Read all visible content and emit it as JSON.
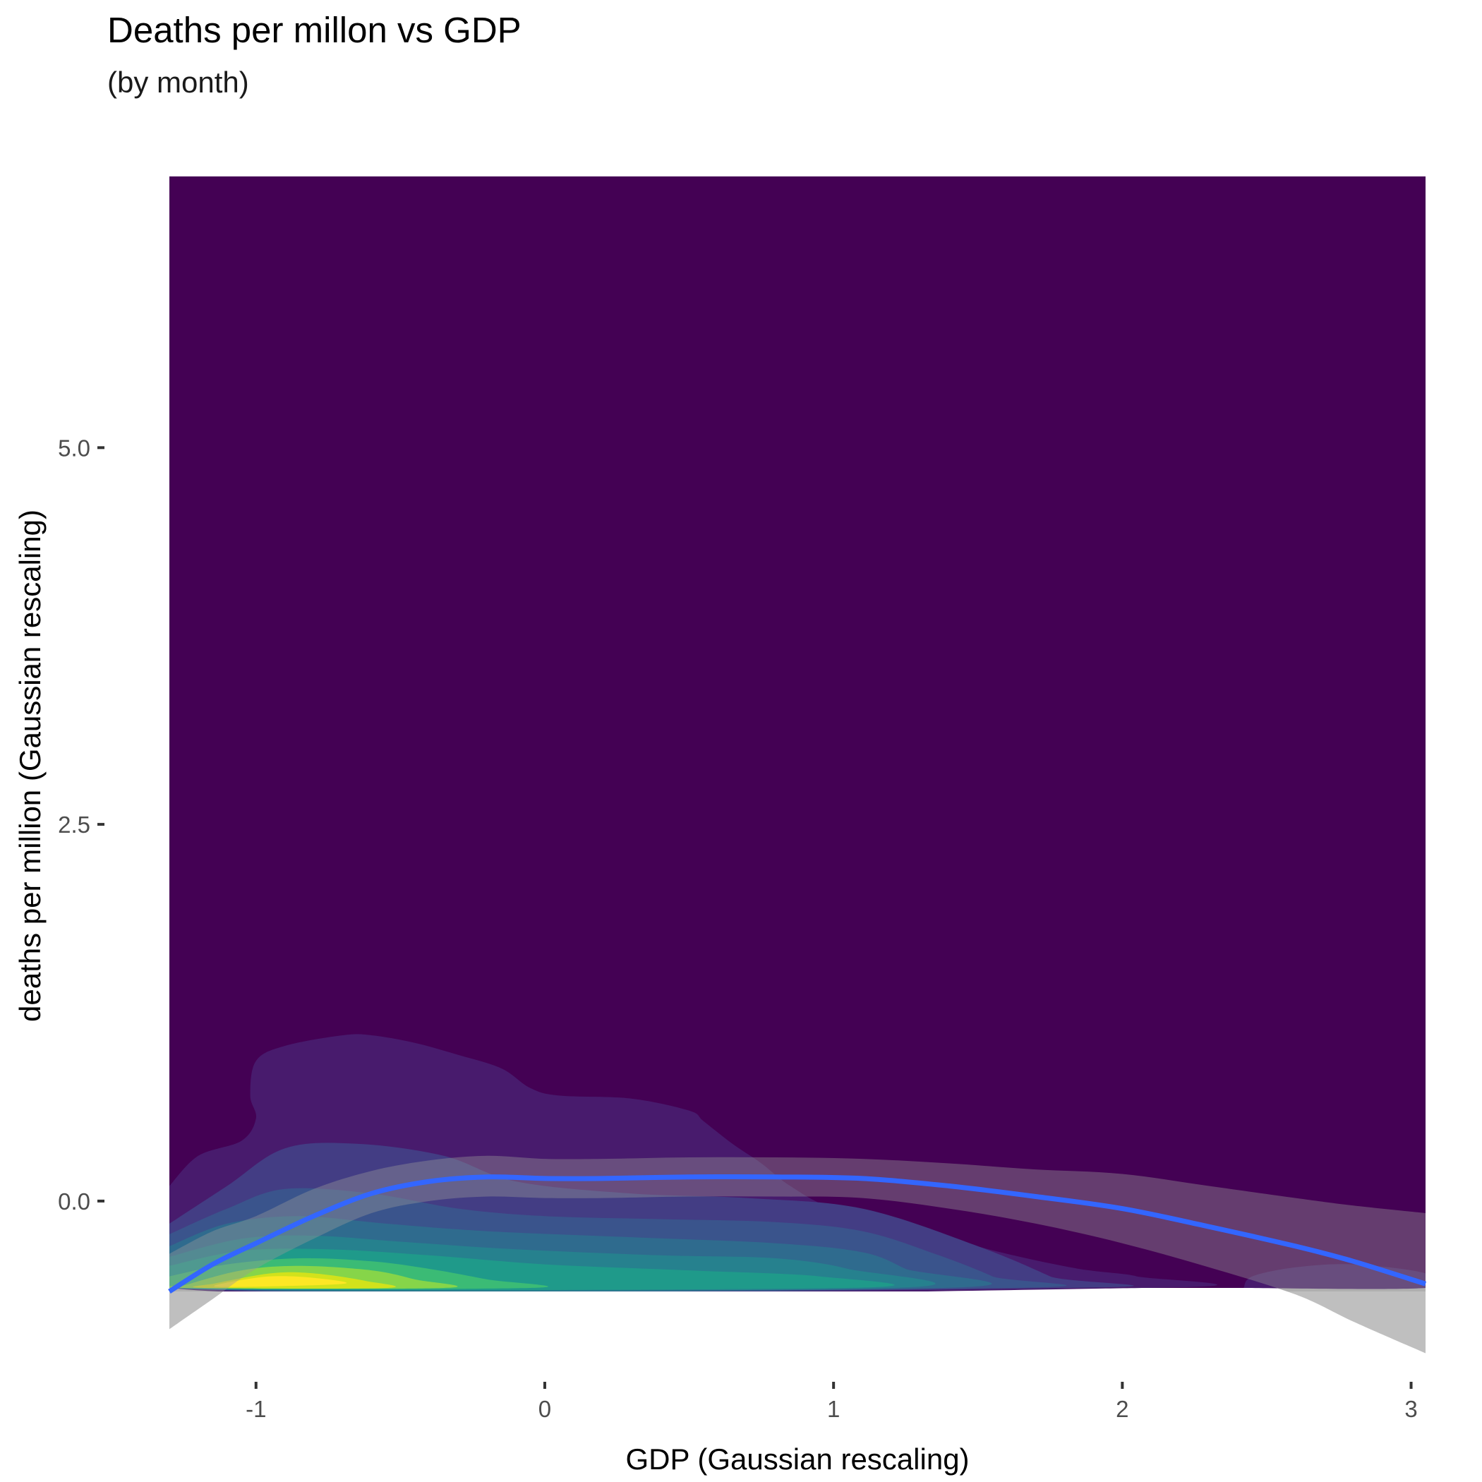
{
  "chart_data": {
    "type": "heatmap",
    "title": "Deaths per millon vs GDP",
    "subtitle": "(by month)",
    "xlabel": "GDP (Gaussian rescaling)",
    "ylabel": "deaths per million (Gaussian rescaling)",
    "xlim": [
      -1.3,
      3.05
    ],
    "ylim": [
      -0.6,
      6.8
    ],
    "x_ticks": [
      {
        "value": -1,
        "label": "-1"
      },
      {
        "value": 0,
        "label": "0"
      },
      {
        "value": 1,
        "label": "1"
      },
      {
        "value": 2,
        "label": "2"
      },
      {
        "value": 3,
        "label": "3"
      }
    ],
    "y_ticks": [
      {
        "value": 0,
        "label": "0.0"
      },
      {
        "value": 2.5,
        "label": "2.5"
      },
      {
        "value": 5,
        "label": "5.0"
      }
    ],
    "grid": false,
    "legend": "none",
    "density_levels": [
      {
        "level": 1,
        "color": "#481B6D",
        "points": [
          [
            -1.3,
            0.1
          ],
          [
            -1.2,
            0.3
          ],
          [
            -1.05,
            0.4
          ],
          [
            -1.0,
            0.55
          ],
          [
            -1.02,
            0.7
          ],
          [
            -1.0,
            0.93
          ],
          [
            -0.9,
            1.03
          ],
          [
            -0.7,
            1.1
          ],
          [
            -0.6,
            1.1
          ],
          [
            -0.45,
            1.05
          ],
          [
            -0.3,
            0.97
          ],
          [
            -0.15,
            0.88
          ],
          [
            -0.05,
            0.75
          ],
          [
            0.05,
            0.7
          ],
          [
            0.3,
            0.68
          ],
          [
            0.5,
            0.6
          ],
          [
            0.55,
            0.53
          ],
          [
            0.65,
            0.38
          ],
          [
            0.75,
            0.25
          ],
          [
            0.85,
            0.1
          ],
          [
            1.0,
            -0.05
          ],
          [
            1.3,
            -0.2
          ],
          [
            1.6,
            -0.35
          ],
          [
            1.85,
            -0.45
          ],
          [
            2.05,
            -0.5
          ],
          [
            2.08,
            -0.6
          ],
          [
            -1.3,
            -0.6
          ]
        ]
      },
      {
        "level": 2,
        "color": "#433D84",
        "points": [
          [
            -1.3,
            -0.15
          ],
          [
            -1.1,
            0.1
          ],
          [
            -0.9,
            0.35
          ],
          [
            -0.65,
            0.38
          ],
          [
            -0.35,
            0.3
          ],
          [
            -0.1,
            0.13
          ],
          [
            0.3,
            0.05
          ],
          [
            0.7,
            0.02
          ],
          [
            1.1,
            -0.05
          ],
          [
            1.5,
            -0.3
          ],
          [
            1.75,
            -0.5
          ],
          [
            1.82,
            -0.6
          ],
          [
            -1.3,
            -0.6
          ]
        ]
      },
      {
        "level": 3,
        "color": "#3A548C",
        "points": [
          [
            -1.3,
            -0.22
          ],
          [
            -1.1,
            -0.05
          ],
          [
            -0.9,
            0.08
          ],
          [
            -0.6,
            0.05
          ],
          [
            -0.3,
            -0.05
          ],
          [
            0.0,
            -0.1
          ],
          [
            0.4,
            -0.12
          ],
          [
            0.8,
            -0.14
          ],
          [
            1.1,
            -0.2
          ],
          [
            1.35,
            -0.35
          ],
          [
            1.55,
            -0.5
          ],
          [
            1.6,
            -0.6
          ],
          [
            -1.3,
            -0.6
          ]
        ]
      },
      {
        "level": 4,
        "color": "#2F6B8E",
        "points": [
          [
            -1.3,
            -0.3
          ],
          [
            -1.1,
            -0.15
          ],
          [
            -0.85,
            -0.1
          ],
          [
            -0.55,
            -0.15
          ],
          [
            -0.2,
            -0.2
          ],
          [
            0.3,
            -0.24
          ],
          [
            0.8,
            -0.28
          ],
          [
            1.1,
            -0.34
          ],
          [
            1.25,
            -0.45
          ],
          [
            1.38,
            -0.6
          ],
          [
            -1.3,
            -0.6
          ]
        ]
      },
      {
        "level": 5,
        "color": "#26818E",
        "points": [
          [
            -1.3,
            -0.37
          ],
          [
            -1.05,
            -0.25
          ],
          [
            -0.8,
            -0.23
          ],
          [
            -0.5,
            -0.27
          ],
          [
            -0.1,
            -0.32
          ],
          [
            0.4,
            -0.36
          ],
          [
            0.8,
            -0.38
          ],
          [
            1.05,
            -0.45
          ],
          [
            1.2,
            -0.6
          ],
          [
            -1.3,
            -0.6
          ]
        ]
      },
      {
        "level": 6,
        "color": "#1F9A8A",
        "points": [
          [
            -1.3,
            -0.43
          ],
          [
            -1.05,
            -0.33
          ],
          [
            -0.75,
            -0.32
          ],
          [
            -0.4,
            -0.36
          ],
          [
            0.0,
            -0.42
          ],
          [
            0.5,
            -0.46
          ],
          [
            0.95,
            -0.5
          ],
          [
            1.05,
            -0.6
          ],
          [
            -1.3,
            -0.6
          ]
        ]
      },
      {
        "level": 7,
        "color": "#3BBB75",
        "points": [
          [
            -1.3,
            -0.5
          ],
          [
            -1.1,
            -0.42
          ],
          [
            -0.85,
            -0.38
          ],
          [
            -0.6,
            -0.4
          ],
          [
            -0.4,
            -0.45
          ],
          [
            -0.2,
            -0.52
          ],
          [
            -0.05,
            -0.6
          ],
          [
            -1.3,
            -0.6
          ]
        ]
      },
      {
        "level": 8,
        "color": "#86D549",
        "points": [
          [
            -1.25,
            -0.56
          ],
          [
            -1.05,
            -0.46
          ],
          [
            -0.85,
            -0.43
          ],
          [
            -0.6,
            -0.46
          ],
          [
            -0.45,
            -0.52
          ],
          [
            -0.35,
            -0.6
          ],
          [
            -1.28,
            -0.6
          ]
        ]
      },
      {
        "level": 9,
        "color": "#D2E21B",
        "points": [
          [
            -1.15,
            -0.55
          ],
          [
            -0.95,
            -0.48
          ],
          [
            -0.8,
            -0.48
          ],
          [
            -0.62,
            -0.53
          ],
          [
            -0.55,
            -0.6
          ],
          [
            -1.18,
            -0.6
          ]
        ]
      },
      {
        "level": 10,
        "color": "#FDE725",
        "points": [
          [
            -1.1,
            -0.54
          ],
          [
            -0.95,
            -0.5
          ],
          [
            -0.8,
            -0.51
          ],
          [
            -0.7,
            -0.55
          ],
          [
            -1.12,
            -0.57
          ]
        ]
      },
      {
        "level": 1,
        "color": "#481B6D",
        "points": [
          [
            2.42,
            -0.6
          ],
          [
            2.45,
            -0.5
          ],
          [
            2.6,
            -0.44
          ],
          [
            2.8,
            -0.42
          ],
          [
            3.05,
            -0.48
          ],
          [
            3.05,
            -0.6
          ]
        ]
      }
    ],
    "series": [
      {
        "type": "smooth",
        "x": [
          -1.3,
          -1.15,
          -1.0,
          -0.8,
          -0.6,
          -0.4,
          -0.2,
          0.0,
          0.2,
          0.5,
          0.8,
          1.1,
          1.4,
          1.7,
          2.0,
          2.3,
          2.6,
          2.8,
          3.05
        ],
        "y": [
          -0.6,
          -0.42,
          -0.28,
          -0.1,
          0.05,
          0.13,
          0.16,
          0.15,
          0.15,
          0.16,
          0.16,
          0.15,
          0.1,
          0.03,
          -0.05,
          -0.17,
          -0.3,
          -0.4,
          -0.55
        ],
        "ci_lower": [
          -0.85,
          -0.65,
          -0.45,
          -0.25,
          -0.08,
          0.0,
          0.03,
          0.02,
          0.02,
          0.03,
          0.03,
          0.02,
          -0.05,
          -0.15,
          -0.28,
          -0.44,
          -0.62,
          -0.8,
          -1.01
        ],
        "ci_upper": [
          -0.35,
          -0.2,
          -0.1,
          0.08,
          0.2,
          0.27,
          0.3,
          0.28,
          0.28,
          0.29,
          0.29,
          0.28,
          0.25,
          0.21,
          0.18,
          0.1,
          0.02,
          -0.03,
          -0.08
        ],
        "color": "#3366FF",
        "band_color": "#999999"
      }
    ],
    "colors": {
      "panel_background": "#440154",
      "smooth_line": "#3366FF",
      "confidence_band": "#BFBFBF"
    }
  }
}
